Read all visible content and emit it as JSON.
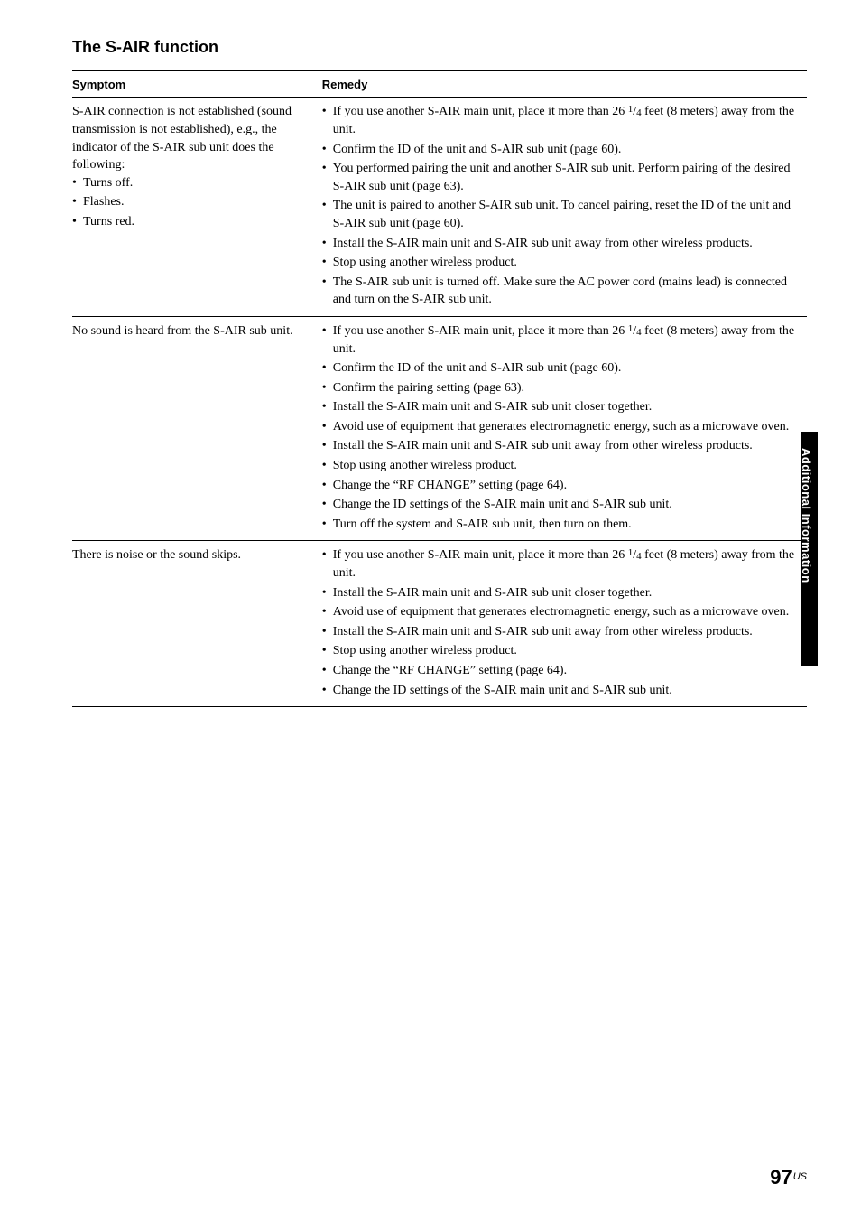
{
  "section_title": "The S-AIR function",
  "headers": {
    "symptom": "Symptom",
    "remedy": "Remedy"
  },
  "side_label": "Additional Information",
  "page_number": "97",
  "page_locale": "US",
  "rows": [
    {
      "symptom_lines": [
        "S-AIR connection is not established (sound transmission is not established), e.g., the indicator of the S-AIR sub unit does the following:"
      ],
      "symptom_bullets": [
        "Turns off.",
        "Flashes.",
        "Turns red."
      ],
      "remedy": [
        "If you use another S-AIR main unit, place it more than 26 1/4 feet (8 meters) away from the unit.",
        "Confirm the ID of the unit and S-AIR sub unit (page 60).",
        "You performed pairing the unit and another S-AIR sub unit. Perform pairing of the desired S-AIR sub unit (page 63).",
        "The unit is paired to another S-AIR sub unit. To cancel pairing, reset the ID of the unit and S-AIR sub unit (page 60).",
        "Install the S-AIR main unit and S-AIR sub unit away from other wireless products.",
        "Stop using another wireless product.",
        "The S-AIR sub unit is turned off. Make sure the AC power cord (mains lead) is connected and turn on the S-AIR sub unit."
      ]
    },
    {
      "symptom_lines": [
        "No sound is heard from the S-AIR sub unit."
      ],
      "symptom_bullets": [],
      "remedy": [
        "If you use another S-AIR main unit, place it more than 26 1/4 feet (8 meters) away from the unit.",
        "Confirm the ID of the unit and S-AIR sub unit (page 60).",
        "Confirm the pairing setting (page 63).",
        "Install the S-AIR main unit and S-AIR sub unit closer together.",
        "Avoid use of equipment that generates electromagnetic energy, such as a microwave oven.",
        "Install the S-AIR main unit and S-AIR sub unit away from other wireless products.",
        "Stop using another wireless product.",
        "Change the \"RF CHANGE\" setting (page 64).",
        "Change the ID settings of the S-AIR main unit and S-AIR sub unit.",
        "Turn off the system and S-AIR sub unit, then turn on them."
      ]
    },
    {
      "symptom_lines": [
        "There is noise or the sound skips."
      ],
      "symptom_bullets": [],
      "remedy": [
        "If you use another S-AIR main unit, place it more than 26 1/4 feet (8 meters) away from the unit.",
        "Install the S-AIR main unit and S-AIR sub unit closer together.",
        "Avoid use of equipment that generates electromagnetic energy, such as a microwave oven.",
        "Install the S-AIR main unit and S-AIR sub unit away from other wireless products.",
        "Stop using another wireless product.",
        "Change the \"RF CHANGE\" setting (page 64).",
        "Change the ID settings of the S-AIR main unit and S-AIR sub unit."
      ]
    }
  ]
}
